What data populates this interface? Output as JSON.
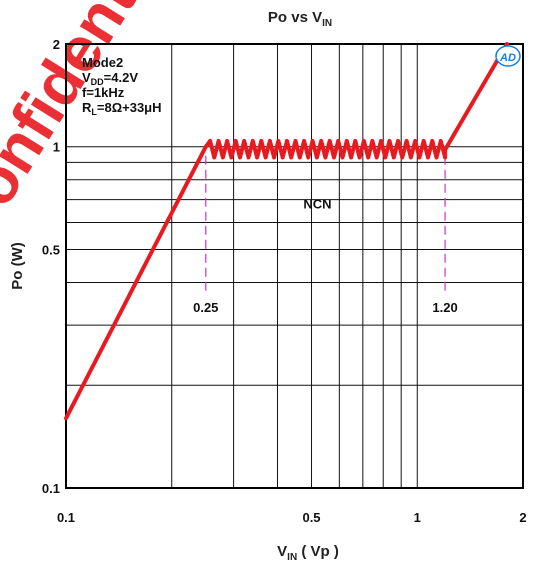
{
  "chart_data": {
    "type": "line",
    "title_main": "Po vs V",
    "title_sub": "IN",
    "xlabel_main": "V",
    "xlabel_sub": "IN",
    "xlabel_rest": " ( Vp )",
    "ylabel": "Po (W)",
    "x_scale": "log",
    "y_scale": "log",
    "xlim": [
      0.1,
      2
    ],
    "ylim": [
      0.1,
      2
    ],
    "grid": true,
    "x_ticks": [
      {
        "value": 0.1,
        "label": "0.1"
      },
      {
        "value": 0.5,
        "label": "0.5"
      },
      {
        "value": 1,
        "label": "1"
      },
      {
        "value": 2,
        "label": "2"
      }
    ],
    "y_ticks": [
      {
        "value": 0.1,
        "label": "0.1"
      },
      {
        "value": 0.5,
        "label": "0.5"
      },
      {
        "value": 1,
        "label": "1"
      },
      {
        "value": 2,
        "label": "2"
      }
    ],
    "conditions": [
      {
        "main": "Mode2",
        "sub": "",
        "rest": ""
      },
      {
        "main": "V",
        "sub": "DD",
        "rest": "=4.2V"
      },
      {
        "main": "f=1kHz",
        "sub": "",
        "rest": ""
      },
      {
        "main": "R",
        "sub": "L",
        "rest": "=8Ω+33μH"
      }
    ],
    "region_label": "NCN",
    "markers": [
      {
        "x": 0.25,
        "label": "0.25"
      },
      {
        "x": 1.2,
        "label": "1.20"
      }
    ],
    "series": [
      {
        "color": "#e8191f",
        "rise": [
          [
            0.1,
            0.16
          ],
          [
            0.25,
            1.0
          ]
        ],
        "plateau": {
          "x_start": 0.25,
          "x_end": 1.2,
          "y": 0.98,
          "ripple_low": 0.93,
          "ripple_high": 1.04,
          "cycles": 28
        },
        "rise2": [
          [
            1.2,
            0.98
          ],
          [
            1.8,
            2.0
          ]
        ]
      }
    ],
    "logo_text": "AD",
    "logo_color": "#1a7fd6"
  },
  "watermark": {
    "text": "Confidential",
    "color": "#e8191f"
  }
}
